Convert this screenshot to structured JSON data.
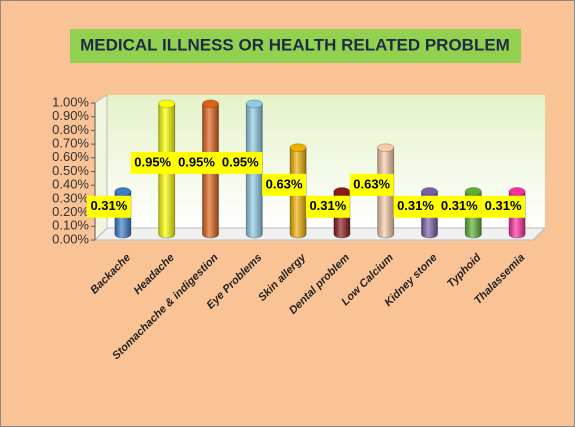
{
  "chart_data": {
    "type": "bar",
    "title": "MEDICAL ILLNESS OR HEALTH RELATED PROBLEM",
    "categories": [
      "Backache",
      "Headache",
      "Stomachache & indigestion",
      "Eye Problems",
      "Skin allergy",
      "Dental problem",
      "Low Calcium",
      "Kidney stone",
      "Typhoid",
      "Thalassemia"
    ],
    "values": [
      0.31,
      0.95,
      0.95,
      0.95,
      0.63,
      0.31,
      0.63,
      0.31,
      0.31,
      0.31
    ],
    "value_labels": [
      "0.31%",
      "0.95%",
      "0.95%",
      "0.95%",
      "0.63%",
      "0.31%",
      "0.63%",
      "0.31%",
      "0.31%",
      "0.31%"
    ],
    "colors": [
      "#3d7cc9",
      "#ffff00",
      "#e0601a",
      "#8ecae6",
      "#f0b000",
      "#8b1a1a",
      "#f8cba8",
      "#7a5ea8",
      "#5cb030",
      "#ff2ca0"
    ],
    "ylim": [
      0,
      1
    ],
    "yticks": [
      {
        "value": 0,
        "label": "0.00%"
      },
      {
        "value": 0.1,
        "label": "0.10%"
      },
      {
        "value": 0.2,
        "label": "0.20%"
      },
      {
        "value": 0.3,
        "label": "0.30%"
      },
      {
        "value": 0.4,
        "label": "0.40%"
      },
      {
        "value": 0.5,
        "label": "0.50%"
      },
      {
        "value": 0.6,
        "label": "0.60%"
      },
      {
        "value": 0.7,
        "label": "0.70%"
      },
      {
        "value": 0.8,
        "label": "0.80%"
      },
      {
        "value": 0.9,
        "label": "0.90%"
      },
      {
        "value": 1,
        "label": "1.00%"
      }
    ]
  }
}
